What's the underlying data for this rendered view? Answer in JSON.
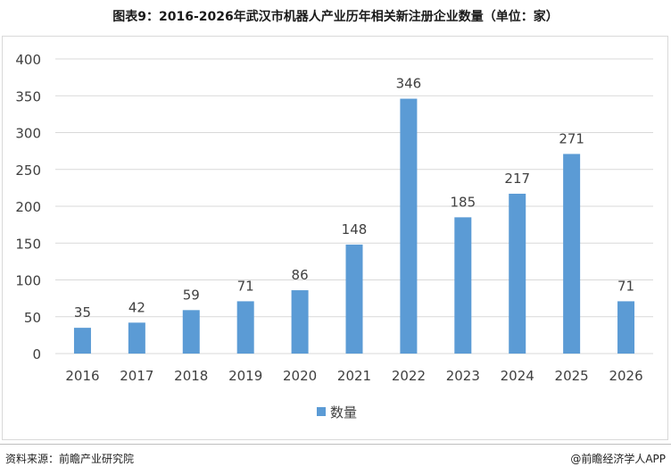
{
  "page": {
    "title": "图表9：2016-2026年武汉市机器人产业历年相关新注册企业数量（单位：家）",
    "source": "资料来源：前瞻产业研究院",
    "brand": "@前瞻经济学人APP"
  },
  "chart_data": {
    "type": "bar",
    "title": "图表9：2016-2026年武汉市机器人产业历年相关新注册企业数量（单位：家）",
    "categories": [
      "2016",
      "2017",
      "2018",
      "2019",
      "2020",
      "2021",
      "2022",
      "2023",
      "2024",
      "2025",
      "2026"
    ],
    "series": [
      {
        "name": "数量",
        "values": [
          35,
          42,
          59,
          71,
          86,
          148,
          346,
          185,
          217,
          271,
          71
        ],
        "color": "#5b9bd5"
      }
    ],
    "ylim": [
      0,
      400
    ],
    "yticks": [
      0,
      50,
      100,
      150,
      200,
      250,
      300,
      350,
      400
    ],
    "grid": true,
    "legend": "bottom",
    "gridColor": "#d9d9d9"
  }
}
